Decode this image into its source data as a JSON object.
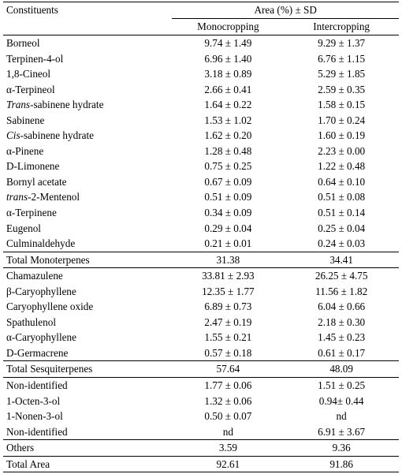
{
  "header": {
    "constituents": "Constituents",
    "area": "Area (%) ± SD",
    "mono": "Monocropping",
    "inter": "Intercropping"
  },
  "rows": [
    {
      "name": "Borneol",
      "mono": "9.74 ± 1.49",
      "inter": "9.29 ± 1.37"
    },
    {
      "name": "Terpinen-4-ol",
      "mono": "6.96 ± 1.40",
      "inter": "6.76 ± 1.15"
    },
    {
      "name": "1,8-Cineol",
      "mono": "3.18 ± 0.89",
      "inter": "5.29 ± 1.85"
    },
    {
      "name": "α-Terpineol",
      "mono": "2.66 ± 0.41",
      "inter": "2.59 ± 0.35"
    },
    {
      "prefix": "Trans",
      "name": "-sabinene hydrate",
      "mono": "1.64 ± 0.22",
      "inter": "1.58 ± 0.15"
    },
    {
      "name": "Sabinene",
      "mono": "1.53 ± 1.02",
      "inter": "1.70 ± 0.24"
    },
    {
      "prefix": "Cis",
      "name": "-sabinene hydrate",
      "mono": "1.62 ± 0.20",
      "inter": "1.60 ± 0.19"
    },
    {
      "name": "α-Pinene",
      "mono": "1.28 ± 0.48",
      "inter": "2.23 ± 0.00"
    },
    {
      "name": "D-Limonene",
      "mono": "0.75 ± 0.25",
      "inter": "1.22 ± 0.48"
    },
    {
      "name": "Bornyl acetate",
      "mono": "0.67 ± 0.09",
      "inter": "0.64 ± 0.10"
    },
    {
      "prefix": "trans",
      "name": "-2-Mentenol",
      "mono": "0.51 ± 0.09",
      "inter": "0.51 ± 0.08"
    },
    {
      "name": "α-Terpinene",
      "mono": "0.34 ± 0.09",
      "inter": "0.51 ± 0.14"
    },
    {
      "name": "Eugenol",
      "mono": "0.29 ± 0.04",
      "inter": "0.25 ± 0.04"
    },
    {
      "name": "Culminaldehyde",
      "mono": "0.21 ± 0.01",
      "inter": "0.24 ± 0.03"
    },
    {
      "name": "Total Monoterpenes",
      "mono": "31.38",
      "inter": "34.41",
      "rule": "sep"
    },
    {
      "name": "Chamazulene",
      "mono": "33.81 ± 2.93",
      "inter": "26.25 ± 4.75",
      "rule": "sep"
    },
    {
      "name": "β-Caryophyllene",
      "mono": "12.35 ± 1.77",
      "inter": "11.56 ± 1.82"
    },
    {
      "name": "Caryophyllene oxide",
      "mono": "6.89 ± 0.73",
      "inter": "6.04 ± 0.66"
    },
    {
      "name": "Spathulenol",
      "mono": "2.47 ± 0.19",
      "inter": "2.18 ± 0.30"
    },
    {
      "name": "α-Caryophyllene",
      "mono": "1.55 ± 0.21",
      "inter": "1.45 ± 0.23"
    },
    {
      "name": "D-Germacrene",
      "mono": "0.57 ± 0.18",
      "inter": "0.61 ± 0.17"
    },
    {
      "name": "Total Sesquiterpenes",
      "mono": "57.64",
      "inter": "48.09",
      "rule": "sep"
    },
    {
      "name": "Non-identified",
      "mono": "1.77 ± 0.06",
      "inter": "1.51 ± 0.25",
      "rule": "sep"
    },
    {
      "name": "1-Octen-3-ol",
      "mono": "1.32 ± 0.06",
      "inter": "0.94± 0.44"
    },
    {
      "name": "1-Nonen-3-ol",
      "mono": "0.50 ± 0.07",
      "inter": "nd"
    },
    {
      "name": "Non-identified",
      "mono": "nd",
      "inter": "6.91 ± 3.67"
    },
    {
      "name": "Others",
      "mono": "3.59",
      "inter": "9.36",
      "rule": "sep"
    },
    {
      "name": "Total Area",
      "mono": "92.61",
      "inter": "91.86",
      "rule": "sep",
      "last": true
    }
  ]
}
